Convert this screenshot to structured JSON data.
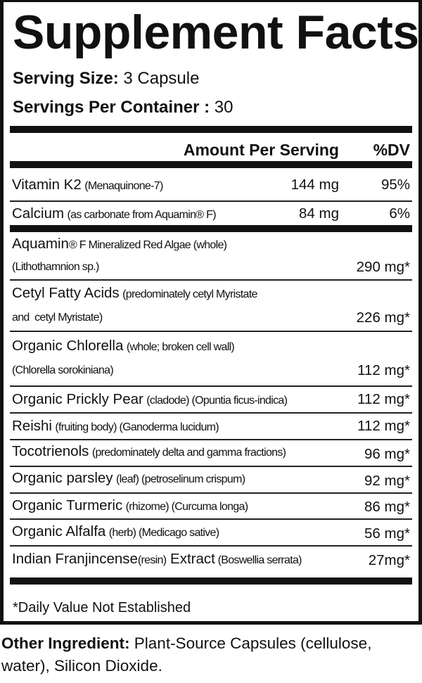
{
  "title": "Supplement Facts",
  "serving_size": {
    "label": "Serving Size:",
    "value": "3 Capsule"
  },
  "servings_per_container": {
    "label": "Servings Per Container :",
    "value": "30"
  },
  "header": {
    "amount": "Amount Per Serving",
    "dv": "%DV"
  },
  "vitamins": [
    {
      "name": "Vitamin K2",
      "detail": "(Menaquinone-7)",
      "amount": "144 mg",
      "dv": "95%"
    },
    {
      "name": "Calcium",
      "detail": "(as carbonate from Aquamin® F)",
      "amount": "84 mg",
      "dv": "6%"
    }
  ],
  "ingredients": [
    {
      "name": "Aquamin",
      "detail": "® F Mineralized Red Algae (whole)",
      "detail2": "(Lithothamnion sp.)",
      "amount": "290 mg*"
    },
    {
      "name": "Cetyl Fatty Acids",
      "detail": "(predominately cetyl Myristate",
      "detail2": "and  cetyl Myristate)",
      "amount": "226 mg*"
    },
    {
      "name": "Organic Chlorella",
      "detail": "(whole; broken cell wall)",
      "detail2": "(Chlorella sorokiniana)",
      "amount": "112 mg*"
    },
    {
      "name": "Organic Prickly Pear",
      "detail": "(cladode) (Opuntia ficus-indica)",
      "amount": "112 mg*"
    },
    {
      "name": "Reishi",
      "detail": "(fruiting body) (Ganoderma lucidum)",
      "amount": "112 mg*"
    },
    {
      "name": "Tocotrienols",
      "detail": "(predominately delta and gamma fractions)",
      "amount": "96 mg*"
    },
    {
      "name": "Organic parsley",
      "detail": "(leaf) (petroselinum crispum)",
      "amount": "92 mg*"
    },
    {
      "name": "Organic Turmeric",
      "detail": "(rhizome) (Curcuma longa)",
      "amount": "86 mg*"
    },
    {
      "name": "Organic Alfalfa",
      "detail": "(herb) (Medicago sative)",
      "amount": "56 mg*"
    },
    {
      "name": "Indian Franjincense",
      "detail": "(resin)",
      "name2": " Extract",
      "detail3": " (Boswellia serrata)",
      "amount": "27mg*"
    }
  ],
  "footnote": "*Daily Value Not Established",
  "other_ingredients": {
    "label": "Other Ingredient:",
    "value": "Plant-Source Capsules (cellulose, water), Silicon Dioxide."
  }
}
